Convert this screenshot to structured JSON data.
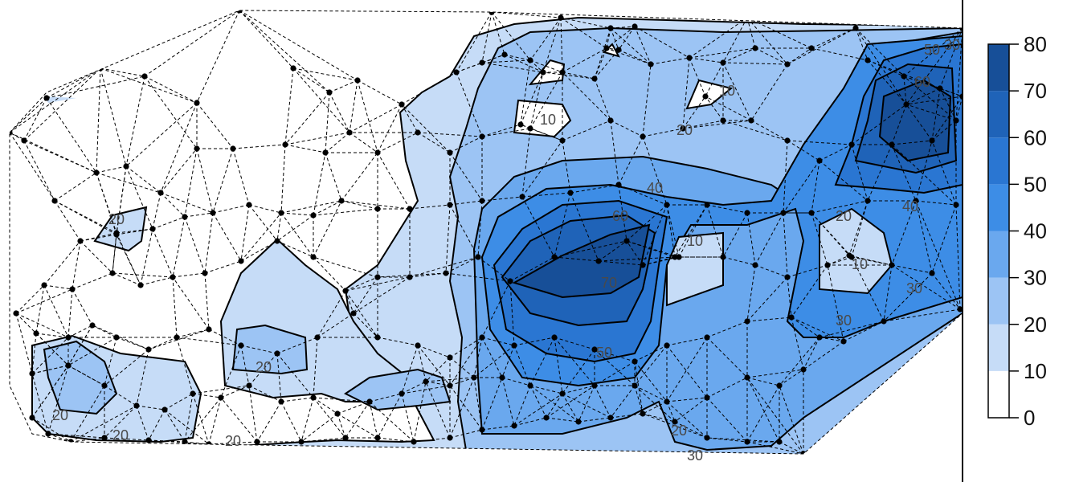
{
  "chart_data": {
    "type": "heatmap",
    "title": "",
    "xlabel": "",
    "ylabel": "",
    "legend_placement": "right",
    "colorbar": {
      "breaks": [
        0,
        10,
        20,
        30,
        40,
        50,
        60,
        70,
        80
      ],
      "tick_labels": [
        "0",
        "10",
        "20",
        "30",
        "40",
        "50",
        "60",
        "70",
        "80"
      ],
      "colors": [
        "#ffffff",
        "#c6dcf7",
        "#9cc4f4",
        "#6aa8ee",
        "#3d8de6",
        "#2a76d2",
        "#1f63b8",
        "#174f98"
      ]
    },
    "contour_labels": [
      "10",
      "20",
      "20",
      "20",
      "20",
      "20",
      "30",
      "30",
      "30",
      "40",
      "40",
      "50",
      "50",
      "60",
      "60",
      "70",
      "10",
      "10",
      "10",
      "20",
      "20",
      "20",
      "30"
    ],
    "mesh": "dashed Delaunay triangulation with black sample points"
  }
}
